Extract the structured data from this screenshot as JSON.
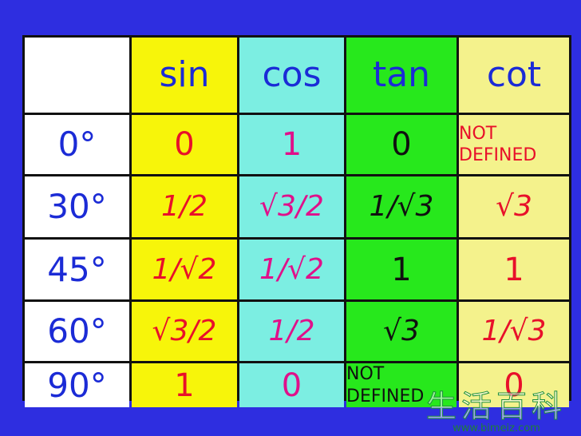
{
  "table": {
    "headers": [
      "",
      "sin",
      "cos",
      "tan",
      "cot"
    ],
    "rows": [
      {
        "angle": "0°",
        "sin": "0",
        "cos": "1",
        "tan": "0",
        "cot": "NOT DEFINED"
      },
      {
        "angle": "30°",
        "sin": "1/2",
        "cos": "√3/2",
        "tan": "1/√3",
        "cot": "√3"
      },
      {
        "angle": "45°",
        "sin": "1/√2",
        "cos": "1/√2",
        "tan": "1",
        "cot": "1"
      },
      {
        "angle": "60°",
        "sin": "√3/2",
        "cos": "1/2",
        "tan": "√3",
        "cot": "1/√3"
      },
      {
        "angle": "90°",
        "sin": "1",
        "cos": "0",
        "tan": "NOT DEFINED",
        "cot": "0"
      }
    ]
  },
  "watermark": {
    "chinese": "生活百科",
    "url": "www.bimeiz.com"
  },
  "colors": {
    "background": "#2e2ee0",
    "angle_column": "#ffffff",
    "sin_column": "#f7f50a",
    "cos_column": "#7ceee2",
    "tan_column": "#27e81c",
    "cot_column": "#f4f28c"
  }
}
